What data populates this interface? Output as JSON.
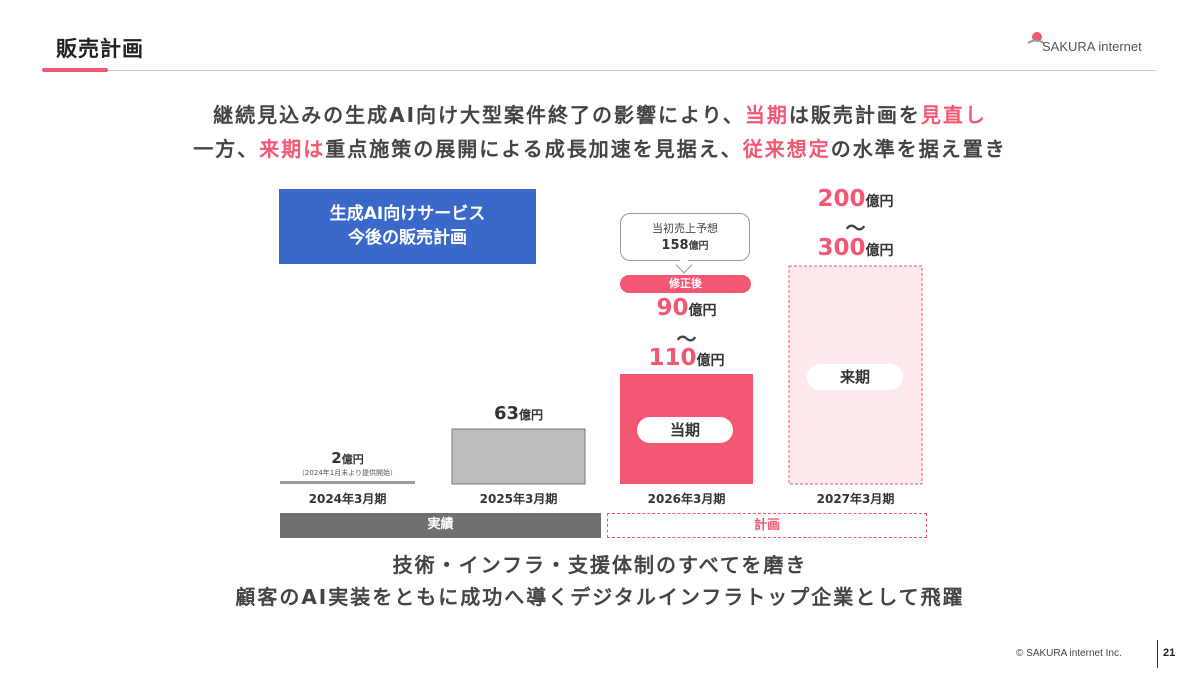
{
  "slide": {
    "title": "販売計画",
    "page_number": "21",
    "copyright": "© SAKURA internet Inc."
  },
  "logo": {
    "text": "SAKURA internet"
  },
  "headline": {
    "line1": {
      "p1": "継続見込みの生成AI向け大型案件終了の影響により、",
      "h1": "当期",
      "p2": "は販売計画を",
      "h2": "見直し"
    },
    "line2": {
      "p1": "一方、",
      "h1": "来期は",
      "p2": "重点施策の展開による成長加速を見据え、",
      "h2": "従来想定",
      "p3": "の水準を据え置き"
    }
  },
  "service_box": {
    "line1": "生成AI向けサービス",
    "line2": "今後の販売計画"
  },
  "callout": {
    "line1": "当初売上予想",
    "value": "158",
    "unit": "億円"
  },
  "revised_pill": "修正後",
  "value_labels": {
    "fy2024": {
      "value": "2",
      "unit": "億円",
      "note": "（2024年1月末より提供開始）"
    },
    "fy2025": {
      "value": "63",
      "unit": "億円"
    },
    "fy2026": {
      "low": "90",
      "tilde": "～",
      "high": "110",
      "unit": "億円"
    },
    "fy2027": {
      "low": "200",
      "tilde": "～",
      "high": "300",
      "unit": "億円"
    }
  },
  "bar_tags": {
    "current": "当期",
    "next": "来期"
  },
  "bands": {
    "actual": "実績",
    "plan": "計画"
  },
  "closing": {
    "line1": "技術・インフラ・支援体制のすべてを磨き",
    "line2": "顧客のAI実装をともに成功へ導くデジタルインフラトップ企業として飛躍"
  },
  "colors": {
    "accent": "#f25872",
    "actual_bar": "#bdbdbd",
    "service_box": "#3a69c9",
    "plan_fill": "#fde8ec"
  },
  "chart_data": {
    "type": "bar",
    "categories": [
      "2024年3月期",
      "2025年3月期",
      "2026年3月期",
      "2027年3月期"
    ],
    "series": [
      {
        "values": [
          2,
          63,
          110,
          300
        ],
        "ranges": [
          null,
          null,
          [
            90,
            110
          ],
          [
            200,
            300
          ]
        ]
      }
    ],
    "segments": [
      "実績",
      "実績",
      "計画",
      "計画"
    ],
    "initial_forecast": {
      "category": "2026年3月期",
      "value": 158
    },
    "unit": "億円",
    "ylim": [
      0,
      300
    ],
    "grid": false,
    "legend": "none"
  }
}
